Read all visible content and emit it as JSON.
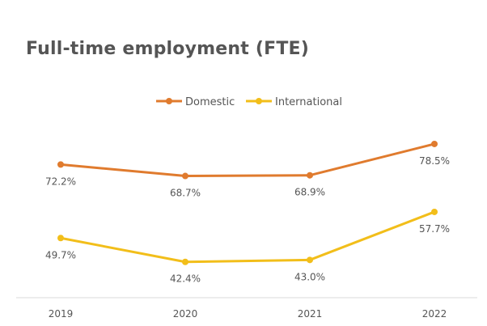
{
  "chart_data": {
    "type": "line",
    "title": "Full-time employment (FTE)",
    "categories": [
      "2019",
      "2020",
      "2021",
      "2022"
    ],
    "series": [
      {
        "name": "Domestic",
        "color": "#E07B2E",
        "values": [
          72.2,
          68.7,
          68.9,
          78.5
        ],
        "labels": [
          "72.2%",
          "68.7%",
          "68.9%",
          "78.5%"
        ]
      },
      {
        "name": "International",
        "color": "#F2BE1A",
        "values": [
          49.7,
          42.4,
          43.0,
          57.7
        ],
        "labels": [
          "49.7%",
          "42.4%",
          "43.0%",
          "57.7%"
        ]
      }
    ],
    "xlabel": "",
    "ylabel": "",
    "legend": "top-center",
    "grid": false,
    "axis_color": "#D9D9D9",
    "text_color": "#555555"
  }
}
